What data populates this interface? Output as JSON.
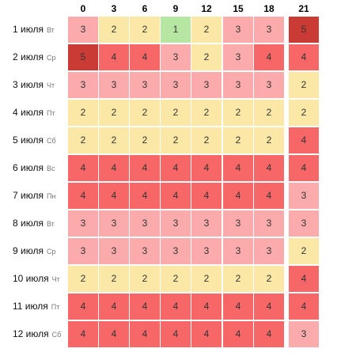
{
  "hours": [
    "0",
    "3",
    "6",
    "9",
    "12",
    "15",
    "18",
    "21"
  ],
  "rows": [
    {
      "date": "1 июля",
      "dow": "Вт",
      "values": [
        3,
        2,
        2,
        1,
        2,
        3,
        3,
        5
      ]
    },
    {
      "date": "2 июля",
      "dow": "Ср",
      "values": [
        5,
        4,
        4,
        3,
        2,
        3,
        4,
        4
      ]
    },
    {
      "date": "3 июля",
      "dow": "Чт",
      "values": [
        3,
        3,
        3,
        3,
        3,
        3,
        3,
        2
      ]
    },
    {
      "date": "4 июля",
      "dow": "Пт",
      "values": [
        2,
        2,
        2,
        2,
        2,
        2,
        2,
        2
      ]
    },
    {
      "date": "5 июля",
      "dow": "Сб",
      "values": [
        2,
        2,
        2,
        2,
        2,
        2,
        2,
        4
      ]
    },
    {
      "date": "6 июля",
      "dow": "Вс",
      "values": [
        4,
        4,
        4,
        4,
        4,
        4,
        4,
        4
      ]
    },
    {
      "date": "7 июля",
      "dow": "Пн",
      "values": [
        4,
        4,
        4,
        4,
        4,
        4,
        4,
        3
      ]
    },
    {
      "date": "8 июля",
      "dow": "Вт",
      "values": [
        3,
        3,
        3,
        3,
        3,
        3,
        3,
        3
      ]
    },
    {
      "date": "9 июля",
      "dow": "Ср",
      "values": [
        3,
        3,
        3,
        3,
        3,
        3,
        3,
        2
      ]
    },
    {
      "date": "10 июля",
      "dow": "Чт",
      "values": [
        2,
        2,
        2,
        2,
        2,
        2,
        2,
        4
      ]
    },
    {
      "date": "11 июля",
      "dow": "Пт",
      "values": [
        4,
        4,
        4,
        4,
        4,
        4,
        4,
        4
      ]
    },
    {
      "date": "12 июля",
      "dow": "Сб",
      "values": [
        4,
        4,
        4,
        4,
        4,
        4,
        4,
        3
      ]
    }
  ],
  "level_colors": {
    "1": "#b6e6a2",
    "2": "#fbe8a6",
    "3": "#fbabab",
    "4": "#f76767",
    "5": "#c93b34"
  }
}
